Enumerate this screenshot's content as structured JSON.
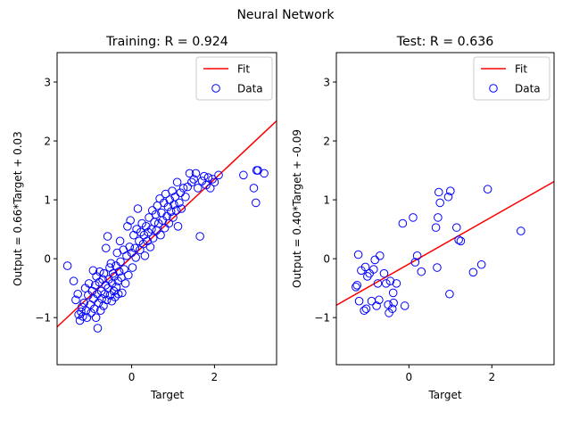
{
  "figure": {
    "suptitle": "Neural Network"
  },
  "colors": {
    "fit": "#ff0000",
    "data": "#0000ff",
    "axes": "#000000"
  },
  "chart_data": [
    {
      "type": "scatter",
      "title": "Training: R = 0.924",
      "xlabel": "Target",
      "ylabel": "Output = 0.66*Target + 0.03",
      "xlim": [
        -1.8,
        3.5
      ],
      "ylim": [
        -1.8,
        3.5
      ],
      "xticks": [
        0,
        2
      ],
      "yticks": [
        -1,
        0,
        1,
        2,
        3
      ],
      "legend": {
        "placement": "top-right",
        "entries": [
          "Fit",
          "Data"
        ]
      },
      "fit": {
        "slope": 0.66,
        "intercept": 0.03
      },
      "points": [
        [
          -1.55,
          -0.12
        ],
        [
          -1.4,
          -0.38
        ],
        [
          -1.35,
          -0.7
        ],
        [
          -1.3,
          -0.6
        ],
        [
          -1.28,
          -0.95
        ],
        [
          -1.25,
          -1.05
        ],
        [
          -1.22,
          -0.9
        ],
        [
          -1.2,
          -0.82
        ],
        [
          -1.18,
          -0.98
        ],
        [
          -1.15,
          -0.75
        ],
        [
          -1.12,
          -0.5
        ],
        [
          -1.1,
          -0.88
        ],
        [
          -1.08,
          -1.0
        ],
        [
          -1.05,
          -0.62
        ],
        [
          -1.03,
          -0.42
        ],
        [
          -1.0,
          -0.78
        ],
        [
          -0.98,
          -0.92
        ],
        [
          -0.95,
          -0.55
        ],
        [
          -0.93,
          -0.2
        ],
        [
          -0.92,
          -0.68
        ],
        [
          -0.9,
          -0.85
        ],
        [
          -0.88,
          -0.45
        ],
        [
          -0.86,
          -1.0
        ],
        [
          -0.85,
          -0.3
        ],
        [
          -0.83,
          -0.6
        ],
        [
          -0.82,
          -1.18
        ],
        [
          -0.8,
          -0.75
        ],
        [
          -0.78,
          -0.4
        ],
        [
          -0.77,
          -0.22
        ],
        [
          -0.75,
          -0.88
        ],
        [
          -0.73,
          -0.55
        ],
        [
          -0.72,
          -0.68
        ],
        [
          -0.7,
          -0.35
        ],
        [
          -0.68,
          -0.8
        ],
        [
          -0.67,
          -0.25
        ],
        [
          -0.65,
          -0.6
        ],
        [
          -0.63,
          -0.45
        ],
        [
          -0.62,
          0.18
        ],
        [
          -0.6,
          -0.7
        ],
        [
          -0.58,
          0.38
        ],
        [
          -0.57,
          -0.5
        ],
        [
          -0.55,
          -0.35
        ],
        [
          -0.53,
          -0.15
        ],
        [
          -0.52,
          -0.62
        ],
        [
          -0.5,
          -0.08
        ],
        [
          -0.48,
          -0.72
        ],
        [
          -0.47,
          -0.42
        ],
        [
          -0.45,
          -0.25
        ],
        [
          -0.43,
          -0.55
        ],
        [
          -0.42,
          -0.3
        ],
        [
          -0.4,
          -0.65
        ],
        [
          -0.38,
          -0.12
        ],
        [
          -0.37,
          -0.48
        ],
        [
          -0.35,
          0.1
        ],
        [
          -0.33,
          -0.38
        ],
        [
          -0.32,
          -0.6
        ],
        [
          -0.3,
          -0.22
        ],
        [
          -0.28,
          0.3
        ],
        [
          -0.27,
          -0.05
        ],
        [
          -0.25,
          -0.32
        ],
        [
          -0.23,
          -0.58
        ],
        [
          -0.2,
          0.15
        ],
        [
          -0.18,
          -0.18
        ],
        [
          -0.15,
          -0.42
        ],
        [
          -0.12,
          0.05
        ],
        [
          -0.1,
          0.55
        ],
        [
          -0.08,
          -0.28
        ],
        [
          -0.05,
          0.2
        ],
        [
          -0.03,
          0.65
        ],
        [
          0.0,
          0.1
        ],
        [
          0.02,
          -0.15
        ],
        [
          0.05,
          0.4
        ],
        [
          0.08,
          0.18
        ],
        [
          0.1,
          0.02
        ],
        [
          0.12,
          0.5
        ],
        [
          0.15,
          0.85
        ],
        [
          0.18,
          0.3
        ],
        [
          0.2,
          0.15
        ],
        [
          0.22,
          0.45
        ],
        [
          0.25,
          0.6
        ],
        [
          0.28,
          0.25
        ],
        [
          0.3,
          0.4
        ],
        [
          0.32,
          0.05
        ],
        [
          0.35,
          0.55
        ],
        [
          0.38,
          0.3
        ],
        [
          0.4,
          0.45
        ],
        [
          0.42,
          0.7
        ],
        [
          0.45,
          0.2
        ],
        [
          0.48,
          0.5
        ],
        [
          0.5,
          0.82
        ],
        [
          0.52,
          0.35
        ],
        [
          0.55,
          0.62
        ],
        [
          0.58,
          0.75
        ],
        [
          0.6,
          0.48
        ],
        [
          0.62,
          0.9
        ],
        [
          0.65,
          0.6
        ],
        [
          0.68,
          1.02
        ],
        [
          0.7,
          0.4
        ],
        [
          0.72,
          0.78
        ],
        [
          0.75,
          0.65
        ],
        [
          0.78,
          0.95
        ],
        [
          0.8,
          0.52
        ],
        [
          0.82,
          1.1
        ],
        [
          0.85,
          0.72
        ],
        [
          0.88,
          0.88
        ],
        [
          0.9,
          0.6
        ],
        [
          0.92,
          1.0
        ],
        [
          0.95,
          0.8
        ],
        [
          0.98,
          1.15
        ],
        [
          1.0,
          0.7
        ],
        [
          1.02,
          0.92
        ],
        [
          1.05,
          1.05
        ],
        [
          1.08,
          0.82
        ],
        [
          1.1,
          1.3
        ],
        [
          1.12,
          0.55
        ],
        [
          1.15,
          0.95
        ],
        [
          1.18,
          1.12
        ],
        [
          1.2,
          0.85
        ],
        [
          1.25,
          1.2
        ],
        [
          1.3,
          1.05
        ],
        [
          1.35,
          1.22
        ],
        [
          1.4,
          1.45
        ],
        [
          1.45,
          1.3
        ],
        [
          1.5,
          1.35
        ],
        [
          1.55,
          1.45
        ],
        [
          1.6,
          1.2
        ],
        [
          1.65,
          0.38
        ],
        [
          1.7,
          1.32
        ],
        [
          1.75,
          1.4
        ],
        [
          1.8,
          1.25
        ],
        [
          1.85,
          1.38
        ],
        [
          1.9,
          1.2
        ],
        [
          1.95,
          1.35
        ],
        [
          2.0,
          1.3
        ],
        [
          2.1,
          1.42
        ],
        [
          2.7,
          1.42
        ],
        [
          2.95,
          1.2
        ],
        [
          3.0,
          0.95
        ],
        [
          3.02,
          1.5
        ],
        [
          3.05,
          1.5
        ],
        [
          3.2,
          1.45
        ]
      ]
    },
    {
      "type": "scatter",
      "title": "Test: R = 0.636",
      "xlabel": "Target",
      "ylabel": "Output = 0.40*Target + -0.09",
      "xlim": [
        -1.75,
        3.5
      ],
      "ylim": [
        -1.8,
        3.5
      ],
      "xticks": [
        0,
        2
      ],
      "yticks": [
        -1,
        0,
        1,
        2,
        3
      ],
      "legend": {
        "placement": "top-right",
        "entries": [
          "Fit",
          "Data"
        ]
      },
      "fit": {
        "slope": 0.4,
        "intercept": -0.09
      },
      "points": [
        [
          -1.28,
          -0.48
        ],
        [
          -1.25,
          -0.45
        ],
        [
          -1.22,
          0.07
        ],
        [
          -1.2,
          -0.72
        ],
        [
          -1.15,
          -0.2
        ],
        [
          -1.08,
          -0.88
        ],
        [
          -1.05,
          -0.14
        ],
        [
          -1.03,
          -0.85
        ],
        [
          -1.0,
          -0.3
        ],
        [
          -0.95,
          -0.25
        ],
        [
          -0.9,
          -0.72
        ],
        [
          -0.85,
          -0.18
        ],
        [
          -0.82,
          -0.02
        ],
        [
          -0.78,
          -0.8
        ],
        [
          -0.75,
          -0.42
        ],
        [
          -0.72,
          -0.7
        ],
        [
          -0.7,
          0.05
        ],
        [
          -0.6,
          -0.25
        ],
        [
          -0.55,
          -0.42
        ],
        [
          -0.5,
          -0.78
        ],
        [
          -0.48,
          -0.92
        ],
        [
          -0.45,
          -0.38
        ],
        [
          -0.4,
          -0.85
        ],
        [
          -0.38,
          -0.58
        ],
        [
          -0.37,
          -0.75
        ],
        [
          -0.3,
          -0.42
        ],
        [
          -0.15,
          0.6
        ],
        [
          -0.1,
          -0.8
        ],
        [
          0.1,
          0.7
        ],
        [
          0.15,
          -0.06
        ],
        [
          0.2,
          0.05
        ],
        [
          0.3,
          -0.22
        ],
        [
          0.65,
          0.53
        ],
        [
          0.68,
          -0.15
        ],
        [
          0.7,
          0.7
        ],
        [
          0.72,
          1.13
        ],
        [
          0.75,
          0.95
        ],
        [
          0.95,
          1.05
        ],
        [
          0.98,
          -0.6
        ],
        [
          1.0,
          1.15
        ],
        [
          1.15,
          0.53
        ],
        [
          1.2,
          0.32
        ],
        [
          1.25,
          0.3
        ],
        [
          1.55,
          -0.23
        ],
        [
          1.75,
          -0.1
        ],
        [
          1.9,
          1.18
        ],
        [
          2.7,
          0.47
        ]
      ]
    }
  ]
}
